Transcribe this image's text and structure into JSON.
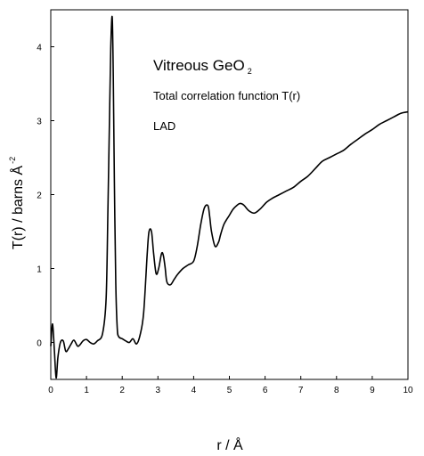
{
  "chart_data": {
    "type": "line",
    "xlabel": "r / Å",
    "ylabel": "T(r) / barns Å",
    "ylabel_exponent": "-2",
    "xlim": [
      0,
      10
    ],
    "ylim": [
      -0.5,
      4.5
    ],
    "xticks": [
      "0",
      "1",
      "2",
      "3",
      "4",
      "5",
      "6",
      "7",
      "8",
      "9",
      "10"
    ],
    "yticks": [
      "0",
      "1",
      "2",
      "3",
      "4"
    ],
    "grid": false,
    "annotations": {
      "title_main": "Vitreous GeO",
      "title_subscript": "2",
      "line2": "Total correlation function T(r)",
      "line3": "LAD"
    },
    "series": [
      {
        "color": "#000000",
        "x": [
          0.0,
          0.05,
          0.1,
          0.15,
          0.2,
          0.27,
          0.35,
          0.42,
          0.5,
          0.57,
          0.65,
          0.75,
          0.82,
          0.9,
          1.0,
          1.1,
          1.2,
          1.3,
          1.45,
          1.55,
          1.6,
          1.65,
          1.68,
          1.72,
          1.75,
          1.78,
          1.82,
          1.86,
          1.9,
          2.0,
          2.1,
          2.2,
          2.3,
          2.4,
          2.5,
          2.6,
          2.7,
          2.75,
          2.82,
          2.88,
          2.95,
          3.02,
          3.1,
          3.15,
          3.2,
          3.25,
          3.35,
          3.45,
          3.55,
          3.7,
          3.85,
          4.0,
          4.1,
          4.2,
          4.3,
          4.4,
          4.45,
          4.5,
          4.6,
          4.7,
          4.75,
          4.85,
          5.0,
          5.1,
          5.2,
          5.3,
          5.4,
          5.55,
          5.7,
          5.85,
          5.95,
          6.05,
          6.2,
          6.4,
          6.6,
          6.8,
          7.0,
          7.2,
          7.4,
          7.6,
          7.8,
          8.0,
          8.2,
          8.4,
          8.6,
          8.8,
          9.0,
          9.2,
          9.4,
          9.6,
          9.8,
          10.0
        ],
        "y": [
          -0.05,
          0.25,
          -0.1,
          -0.48,
          -0.2,
          0.0,
          0.02,
          -0.12,
          -0.08,
          -0.02,
          0.03,
          -0.05,
          -0.03,
          0.02,
          0.04,
          0.0,
          -0.02,
          0.02,
          0.12,
          0.6,
          1.8,
          3.2,
          4.0,
          4.4,
          3.6,
          2.2,
          0.8,
          0.2,
          0.08,
          0.05,
          0.02,
          0.0,
          0.05,
          -0.02,
          0.1,
          0.4,
          1.2,
          1.5,
          1.5,
          1.2,
          0.93,
          1.0,
          1.2,
          1.18,
          1.02,
          0.82,
          0.78,
          0.85,
          0.92,
          1.0,
          1.05,
          1.1,
          1.3,
          1.6,
          1.82,
          1.85,
          1.7,
          1.5,
          1.3,
          1.36,
          1.45,
          1.6,
          1.72,
          1.8,
          1.85,
          1.88,
          1.86,
          1.78,
          1.75,
          1.8,
          1.85,
          1.9,
          1.95,
          2.0,
          2.05,
          2.1,
          2.18,
          2.25,
          2.35,
          2.45,
          2.5,
          2.55,
          2.6,
          2.68,
          2.75,
          2.82,
          2.88,
          2.95,
          3.0,
          3.05,
          3.1,
          3.12
        ]
      }
    ]
  }
}
